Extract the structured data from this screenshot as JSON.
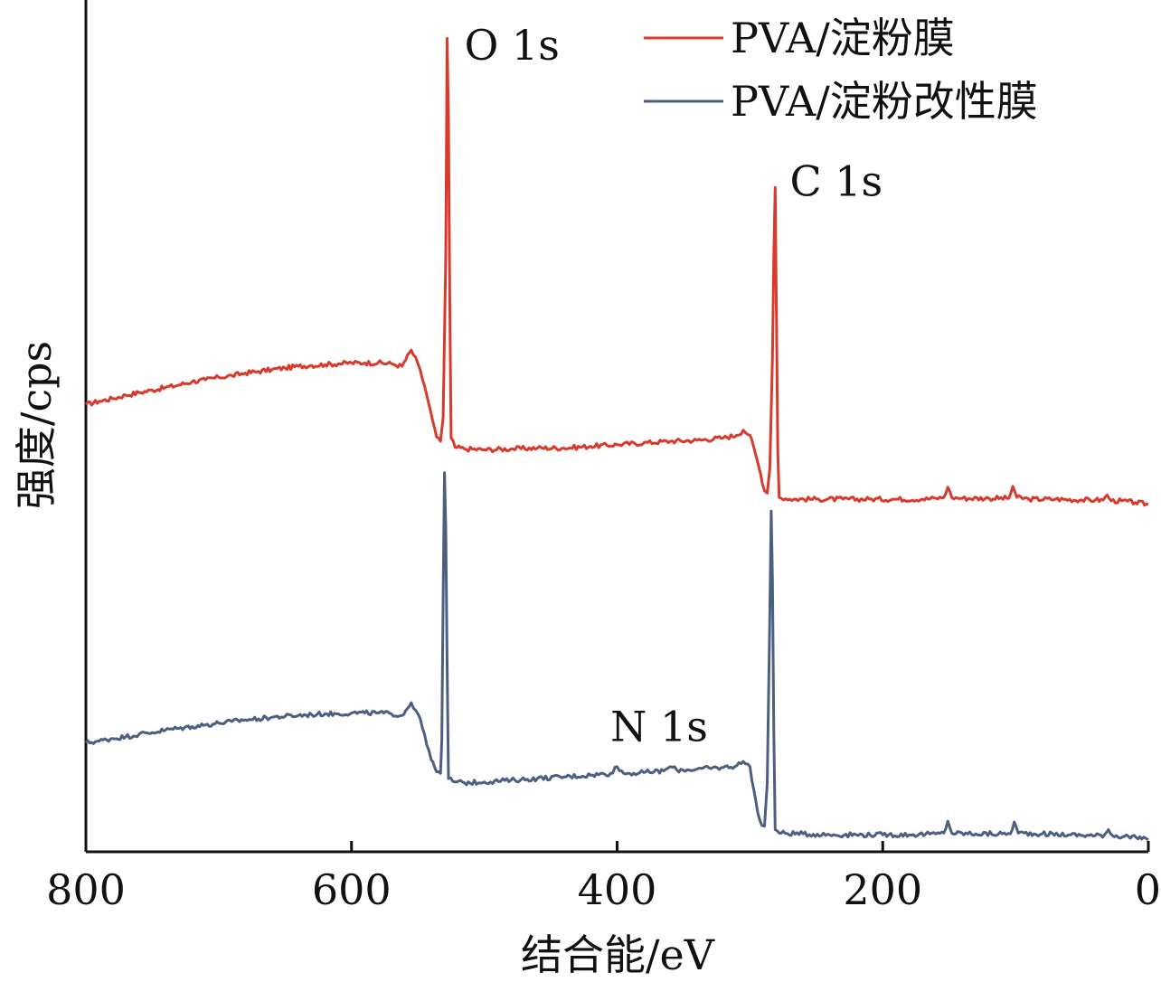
{
  "chart_data": {
    "type": "line",
    "xlabel": "结合能/eV",
    "ylabel": "强度/cps",
    "xlim": [
      800,
      0
    ],
    "ylim": [
      0,
      100
    ],
    "x_ticks": [
      "800",
      "600",
      "400",
      "200",
      "0"
    ],
    "grid": false,
    "legend_position": "top-right",
    "series": [
      {
        "name": "PVA/淀粉膜",
        "color": "#d93a2e",
        "points": [
          [
            800,
            52.5
          ],
          [
            790,
            52.9
          ],
          [
            780,
            53.2
          ],
          [
            770,
            53.6
          ],
          [
            760,
            53.9
          ],
          [
            750,
            54.2
          ],
          [
            740,
            54.5
          ],
          [
            730,
            54.8
          ],
          [
            720,
            55.2
          ],
          [
            710,
            55.4
          ],
          [
            700,
            55.7
          ],
          [
            690,
            55.9
          ],
          [
            680,
            56.2
          ],
          [
            670,
            56.4
          ],
          [
            660,
            56.6
          ],
          [
            650,
            56.8
          ],
          [
            640,
            57.0
          ],
          [
            630,
            57.1
          ],
          [
            620,
            57.2
          ],
          [
            610,
            57.3
          ],
          [
            600,
            57.4
          ],
          [
            590,
            57.4
          ],
          [
            580,
            57.4
          ],
          [
            570,
            57.3
          ],
          [
            562,
            57.0
          ],
          [
            555,
            58.9
          ],
          [
            550,
            57.3
          ],
          [
            545,
            54.7
          ],
          [
            540,
            51.4
          ],
          [
            536,
            48.7
          ],
          [
            533,
            48.2
          ],
          [
            531,
            51.0
          ],
          [
            529,
            70.0
          ],
          [
            528,
            95.5
          ],
          [
            527,
            86.0
          ],
          [
            526,
            65.0
          ],
          [
            525,
            48.6
          ],
          [
            522,
            47.5
          ],
          [
            515,
            47.3
          ],
          [
            500,
            47.2
          ],
          [
            480,
            47.3
          ],
          [
            460,
            47.4
          ],
          [
            440,
            47.4
          ],
          [
            420,
            47.6
          ],
          [
            400,
            47.8
          ],
          [
            380,
            48.0
          ],
          [
            360,
            48.2
          ],
          [
            340,
            48.3
          ],
          [
            320,
            48.6
          ],
          [
            310,
            48.9
          ],
          [
            305,
            49.5
          ],
          [
            300,
            48.9
          ],
          [
            296,
            46.8
          ],
          [
            292,
            44.4
          ],
          [
            289,
            42.4
          ],
          [
            287,
            42.1
          ],
          [
            285,
            45.0
          ],
          [
            283,
            58.0
          ],
          [
            282,
            70.0
          ],
          [
            281,
            78.0
          ],
          [
            280,
            62.0
          ],
          [
            279,
            47.0
          ],
          [
            278,
            41.6
          ],
          [
            270,
            41.4
          ],
          [
            250,
            41.4
          ],
          [
            230,
            41.4
          ],
          [
            210,
            41.4
          ],
          [
            190,
            41.4
          ],
          [
            170,
            41.4
          ],
          [
            160,
            41.5
          ],
          [
            154,
            41.6
          ],
          [
            151,
            42.8
          ],
          [
            148,
            41.6
          ],
          [
            140,
            41.5
          ],
          [
            120,
            41.5
          ],
          [
            105,
            41.5
          ],
          [
            102,
            42.9
          ],
          [
            99,
            41.6
          ],
          [
            90,
            41.4
          ],
          [
            70,
            41.4
          ],
          [
            50,
            41.3
          ],
          [
            40,
            41.3
          ],
          [
            34,
            41.3
          ],
          [
            31,
            41.9
          ],
          [
            28,
            41.2
          ],
          [
            20,
            41.2
          ],
          [
            10,
            41.0
          ],
          [
            0,
            40.8
          ]
        ]
      },
      {
        "name": "PVA/淀粉改性膜",
        "color": "#4d5f80",
        "points": [
          [
            800,
            12.8
          ],
          [
            790,
            13.0
          ],
          [
            780,
            13.3
          ],
          [
            770,
            13.5
          ],
          [
            760,
            13.8
          ],
          [
            750,
            14.0
          ],
          [
            740,
            14.3
          ],
          [
            730,
            14.5
          ],
          [
            720,
            14.7
          ],
          [
            710,
            14.9
          ],
          [
            700,
            15.1
          ],
          [
            690,
            15.3
          ],
          [
            680,
            15.5
          ],
          [
            670,
            15.6
          ],
          [
            660,
            15.8
          ],
          [
            650,
            15.9
          ],
          [
            640,
            16.0
          ],
          [
            630,
            16.1
          ],
          [
            620,
            16.2
          ],
          [
            610,
            16.2
          ],
          [
            600,
            16.3
          ],
          [
            590,
            16.3
          ],
          [
            580,
            16.3
          ],
          [
            570,
            16.2
          ],
          [
            562,
            16.0
          ],
          [
            555,
            17.5
          ],
          [
            550,
            16.2
          ],
          [
            545,
            13.8
          ],
          [
            540,
            10.8
          ],
          [
            536,
            9.4
          ],
          [
            533,
            9.2
          ],
          [
            532,
            13.0
          ],
          [
            531,
            30.0
          ],
          [
            530,
            44.5
          ],
          [
            529,
            38.0
          ],
          [
            528,
            22.0
          ],
          [
            527,
            8.6
          ],
          [
            522,
            8.2
          ],
          [
            515,
            8.1
          ],
          [
            500,
            8.2
          ],
          [
            480,
            8.4
          ],
          [
            460,
            8.6
          ],
          [
            440,
            8.8
          ],
          [
            420,
            9.0
          ],
          [
            405,
            9.2
          ],
          [
            400,
            10.0
          ],
          [
            395,
            9.2
          ],
          [
            380,
            9.3
          ],
          [
            365,
            9.5
          ],
          [
            360,
            10.0
          ],
          [
            355,
            9.6
          ],
          [
            340,
            9.7
          ],
          [
            320,
            9.9
          ],
          [
            310,
            10.1
          ],
          [
            305,
            10.6
          ],
          [
            300,
            10.0
          ],
          [
            297,
            7.2
          ],
          [
            294,
            4.5
          ],
          [
            291,
            3.1
          ],
          [
            289,
            3.0
          ],
          [
            287,
            8.0
          ],
          [
            285,
            28.0
          ],
          [
            284,
            40.0
          ],
          [
            283,
            32.0
          ],
          [
            282,
            14.0
          ],
          [
            281,
            2.6
          ],
          [
            278,
            2.2
          ],
          [
            260,
            2.1
          ],
          [
            240,
            2.0
          ],
          [
            220,
            2.0
          ],
          [
            200,
            2.0
          ],
          [
            180,
            2.0
          ],
          [
            160,
            2.1
          ],
          [
            154,
            2.2
          ],
          [
            151,
            3.6
          ],
          [
            148,
            2.2
          ],
          [
            130,
            2.1
          ],
          [
            110,
            2.1
          ],
          [
            104,
            2.1
          ],
          [
            101,
            3.5
          ],
          [
            98,
            2.2
          ],
          [
            80,
            2.1
          ],
          [
            60,
            2.0
          ],
          [
            40,
            1.9
          ],
          [
            33,
            2.0
          ],
          [
            30,
            2.6
          ],
          [
            27,
            1.9
          ],
          [
            15,
            1.8
          ],
          [
            5,
            1.5
          ],
          [
            0,
            1.4
          ]
        ]
      }
    ],
    "annotations": [
      {
        "text": "O 1s",
        "x": 515,
        "y": 93
      },
      {
        "text": "C 1s",
        "x": 270,
        "y": 77
      },
      {
        "text": "N 1s",
        "x": 405,
        "y": 13
      }
    ]
  }
}
